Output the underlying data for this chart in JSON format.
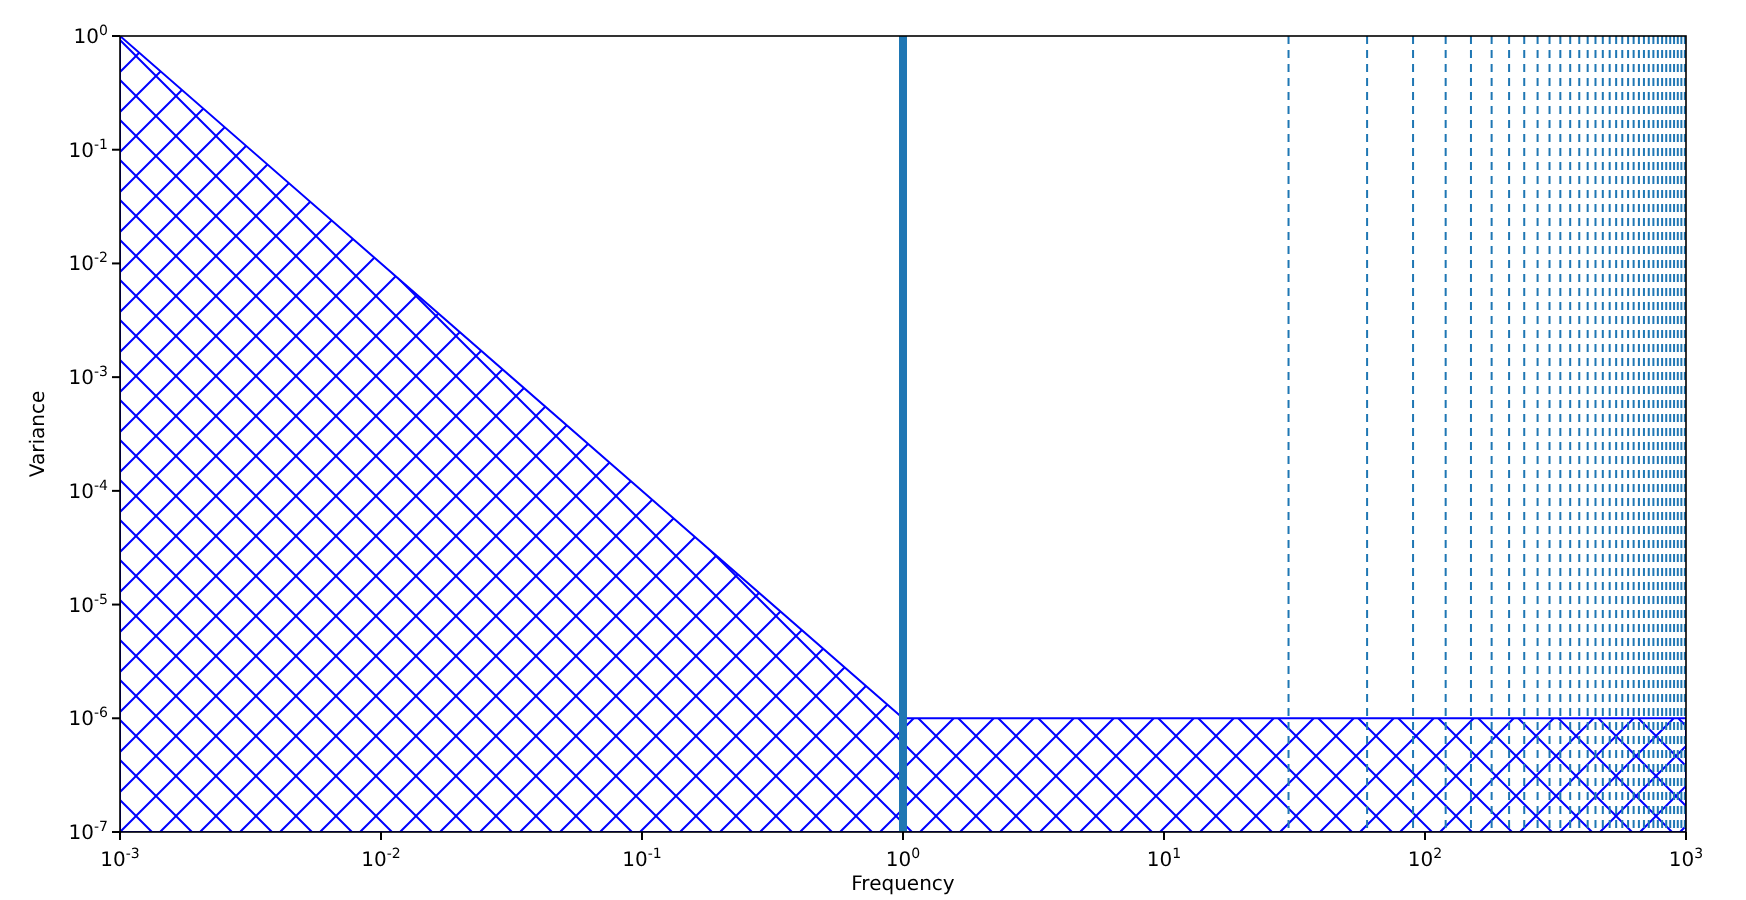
{
  "chart_data": {
    "type": "area",
    "xlabel": "Frequency",
    "ylabel": "Variance",
    "log": "xy",
    "xlim": [
      0.001,
      1000
    ],
    "ylim": [
      1e-07,
      1
    ],
    "xticks": [
      {
        "value": 0.001,
        "label": "10$^{-3}$"
      },
      {
        "value": 0.01,
        "label": "10$^{-2}$"
      },
      {
        "value": 0.1,
        "label": "10$^{-1}$"
      },
      {
        "value": 1,
        "label": "10$^{0}$"
      },
      {
        "value": 10,
        "label": "10$^{1}$"
      },
      {
        "value": 100,
        "label": "10$^{2}$"
      },
      {
        "value": 1000,
        "label": "10$^{3}$"
      }
    ],
    "yticks": [
      {
        "value": 1e-07,
        "label": "10$^{-7}$"
      },
      {
        "value": 1e-06,
        "label": "10$^{-6}$"
      },
      {
        "value": 1e-05,
        "label": "10$^{-5}$"
      },
      {
        "value": 0.0001,
        "label": "10$^{-4}$"
      },
      {
        "value": 0.001,
        "label": "10$^{-3}$"
      },
      {
        "value": 0.01,
        "label": "10$^{-2}$"
      },
      {
        "value": 0.1,
        "label": "10$^{-1}$"
      },
      {
        "value": 1,
        "label": "10$^{0}$"
      }
    ],
    "series": [
      {
        "color": "#0000ff",
        "x": [
          0.001,
          1,
          1000
        ],
        "values": [
          1,
          1e-06,
          1e-06
        ]
      }
    ],
    "ref_lines": [
      {
        "axis": "x",
        "value": 1,
        "color": "#1f77b4",
        "line_style": "solid"
      },
      {
        "axis": "x",
        "value": 30,
        "color": "#1f77b4",
        "line_style": "dashed"
      },
      {
        "axis": "x",
        "value": 60,
        "color": "#1f77b4",
        "line_style": "dashed"
      },
      {
        "axis": "x",
        "value": 90,
        "color": "#1f77b4",
        "line_style": "dashed"
      },
      {
        "axis": "x",
        "value": 120,
        "color": "#1f77b4",
        "line_style": "dashed"
      },
      {
        "axis": "x",
        "value": 150,
        "color": "#1f77b4",
        "line_style": "dashed"
      },
      {
        "axis": "x",
        "value": 180,
        "color": "#1f77b4",
        "line_style": "dashed"
      },
      {
        "axis": "x",
        "value": 210,
        "color": "#1f77b4",
        "line_style": "dashed"
      },
      {
        "axis": "x",
        "value": 240,
        "color": "#1f77b4",
        "line_style": "dashed"
      },
      {
        "axis": "x",
        "value": 270,
        "color": "#1f77b4",
        "line_style": "dashed"
      },
      {
        "axis": "x",
        "value": 300,
        "color": "#1f77b4",
        "line_style": "dashed"
      },
      {
        "axis": "x",
        "value": 330,
        "color": "#1f77b4",
        "line_style": "dashed"
      },
      {
        "axis": "x",
        "value": 360,
        "color": "#1f77b4",
        "line_style": "dashed"
      },
      {
        "axis": "x",
        "value": 390,
        "color": "#1f77b4",
        "line_style": "dashed"
      },
      {
        "axis": "x",
        "value": 420,
        "color": "#1f77b4",
        "line_style": "dashed"
      },
      {
        "axis": "x",
        "value": 450,
        "color": "#1f77b4",
        "line_style": "dashed"
      },
      {
        "axis": "x",
        "value": 480,
        "color": "#1f77b4",
        "line_style": "dashed"
      },
      {
        "axis": "x",
        "value": 510,
        "color": "#1f77b4",
        "line_style": "dashed"
      },
      {
        "axis": "x",
        "value": 540,
        "color": "#1f77b4",
        "line_style": "dashed"
      },
      {
        "axis": "x",
        "value": 570,
        "color": "#1f77b4",
        "line_style": "dashed"
      },
      {
        "axis": "x",
        "value": 600,
        "color": "#1f77b4",
        "line_style": "dashed"
      },
      {
        "axis": "x",
        "value": 630,
        "color": "#1f77b4",
        "line_style": "dashed"
      },
      {
        "axis": "x",
        "value": 660,
        "color": "#1f77b4",
        "line_style": "dashed"
      },
      {
        "axis": "x",
        "value": 690,
        "color": "#1f77b4",
        "line_style": "dashed"
      },
      {
        "axis": "x",
        "value": 720,
        "color": "#1f77b4",
        "line_style": "dashed"
      },
      {
        "axis": "x",
        "value": 750,
        "color": "#1f77b4",
        "line_style": "dashed"
      },
      {
        "axis": "x",
        "value": 780,
        "color": "#1f77b4",
        "line_style": "dashed"
      },
      {
        "axis": "x",
        "value": 810,
        "color": "#1f77b4",
        "line_style": "dashed"
      },
      {
        "axis": "x",
        "value": 840,
        "color": "#1f77b4",
        "line_style": "dashed"
      },
      {
        "axis": "x",
        "value": 870,
        "color": "#1f77b4",
        "line_style": "dashed"
      },
      {
        "axis": "x",
        "value": 900,
        "color": "#1f77b4",
        "line_style": "dashed"
      },
      {
        "axis": "x",
        "value": 930,
        "color": "#1f77b4",
        "line_style": "dashed"
      },
      {
        "axis": "x",
        "value": 960,
        "color": "#1f77b4",
        "line_style": "dashed"
      },
      {
        "axis": "x",
        "value": 990,
        "color": "#1f77b4",
        "line_style": "dashed"
      }
    ]
  }
}
